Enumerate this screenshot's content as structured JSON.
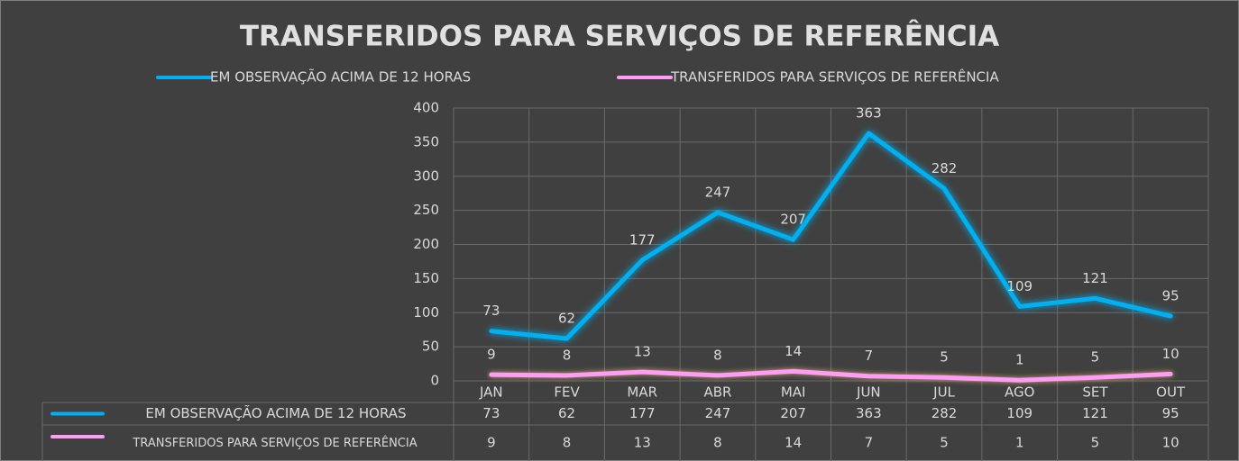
{
  "chart_data": {
    "type": "line",
    "title": "TRANSFERIDOS PARA SERVIÇOS DE REFERÊNCIA",
    "categories": [
      "JAN",
      "FEV",
      "MAR",
      "ABR",
      "MAI",
      "JUN",
      "JUL",
      "AGO",
      "SET",
      "OUT"
    ],
    "series": [
      {
        "name": "EM OBSERVAÇÃO ACIMA DE 12 HORAS",
        "color": "#00b0f0",
        "values": [
          73,
          62,
          177,
          247,
          207,
          363,
          282,
          109,
          121,
          95
        ]
      },
      {
        "name": "TRANSFERIDOS PARA SERVIÇOS DE REFERÊNCIA",
        "color": "#ff9cf5",
        "values": [
          9,
          8,
          13,
          8,
          14,
          7,
          5,
          1,
          5,
          10
        ]
      }
    ],
    "ylim": [
      0,
      400
    ],
    "yticks": [
      0,
      50,
      100,
      150,
      200,
      250,
      300,
      350,
      400
    ],
    "grid": true,
    "legend": "top"
  }
}
